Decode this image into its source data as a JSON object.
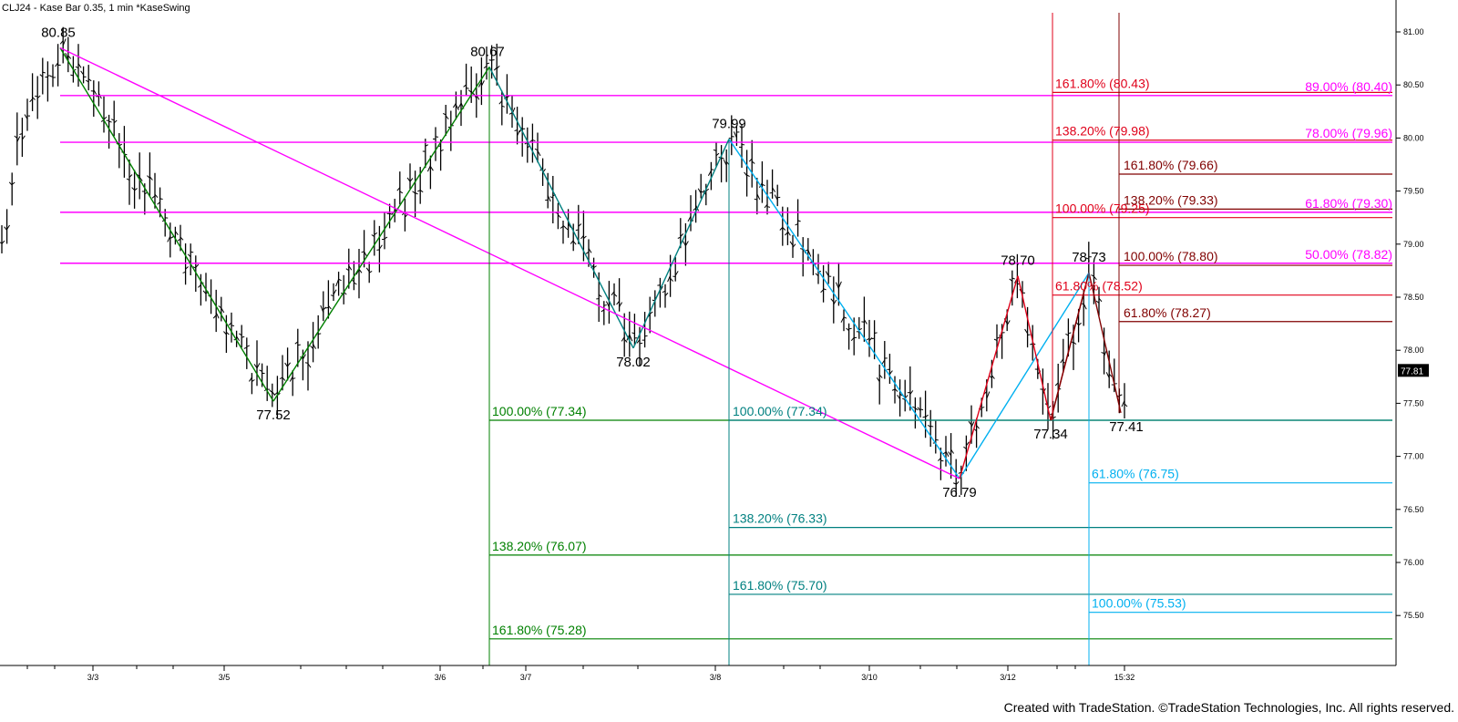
{
  "chart_data": {
    "type": "bar",
    "title": "CLJ24 - Kase Bar 0.35, 1 min  *KaseSwing",
    "credit": "Created with TradeStation. ©TradeStation Technologies, Inc. All rights reserved.",
    "last_price": "77.81",
    "y_ticks": [
      "81.00",
      "80.50",
      "80.00",
      "79.50",
      "79.00",
      "78.50",
      "78.00",
      "77.50",
      "77.00",
      "76.50",
      "76.00",
      "75.50"
    ],
    "ylim": [
      75.0,
      81.4
    ],
    "grid": false,
    "x_ticks": [
      "3/3",
      "3/5",
      "3/6",
      "3/7",
      "3/8",
      "3/10",
      "3/12",
      "15:32"
    ],
    "swing_points": [
      {
        "label": "80.85",
        "price": 80.85
      },
      {
        "label": "77.52",
        "price": 77.52
      },
      {
        "label": "80.67",
        "price": 80.67
      },
      {
        "label": "78.02",
        "price": 78.02
      },
      {
        "label": "79.99",
        "price": 79.99
      },
      {
        "label": "76.79",
        "price": 76.79
      },
      {
        "label": "78.70",
        "price": 78.7
      },
      {
        "label": "77.34",
        "price": 77.34
      },
      {
        "label": "78.73",
        "price": 78.73
      },
      {
        "label": "77.41",
        "price": 77.41
      }
    ],
    "fib_levels": [
      {
        "group": "magenta",
        "label": "89.00% (80.40)",
        "price": 80.4,
        "color": "#ff00ff"
      },
      {
        "group": "magenta",
        "label": "78.00% (79.96)",
        "price": 79.96,
        "color": "#ff00ff"
      },
      {
        "group": "magenta",
        "label": "61.80% (79.30)",
        "price": 79.3,
        "color": "#ff00ff"
      },
      {
        "group": "magenta",
        "label": "50.00% (78.82)",
        "price": 78.82,
        "color": "#ff00ff"
      },
      {
        "group": "green",
        "label": "100.00% (77.34)",
        "price": 77.34,
        "color": "#008000"
      },
      {
        "group": "green",
        "label": "138.20% (76.07)",
        "price": 76.07,
        "color": "#008000"
      },
      {
        "group": "green",
        "label": "161.80% (75.28)",
        "price": 75.28,
        "color": "#008000"
      },
      {
        "group": "teal",
        "label": "100.00% (77.34)",
        "price": 77.34,
        "color": "#008080"
      },
      {
        "group": "teal",
        "label": "138.20% (76.33)",
        "price": 76.33,
        "color": "#008080"
      },
      {
        "group": "teal",
        "label": "161.80% (75.70)",
        "price": 75.7,
        "color": "#008080"
      },
      {
        "group": "red",
        "label": "161.80% (80.43)",
        "price": 80.43,
        "color": "#e0001a"
      },
      {
        "group": "red",
        "label": "138.20% (79.98)",
        "price": 79.98,
        "color": "#e0001a"
      },
      {
        "group": "red",
        "label": "100.00% (79.25)",
        "price": 79.25,
        "color": "#e0001a"
      },
      {
        "group": "red",
        "label": "61.80% (78.52)",
        "price": 78.52,
        "color": "#e0001a"
      },
      {
        "group": "maroon",
        "label": "161.80% (79.66)",
        "price": 79.66,
        "color": "#800000"
      },
      {
        "group": "maroon",
        "label": "138.20% (79.33)",
        "price": 79.33,
        "color": "#800000"
      },
      {
        "group": "maroon",
        "label": "100.00% (78.80)",
        "price": 78.8,
        "color": "#800000"
      },
      {
        "group": "maroon",
        "label": "61.80% (78.27)",
        "price": 78.27,
        "color": "#800000"
      },
      {
        "group": "cyan",
        "label": "61.80% (76.75)",
        "price": 76.75,
        "color": "#00b0f0"
      },
      {
        "group": "cyan",
        "label": "100.00% (75.53)",
        "price": 75.53,
        "color": "#00b0f0"
      }
    ],
    "colors": {
      "magenta": "#ff00ff",
      "green": "#008000",
      "teal": "#008080",
      "red": "#e0001a",
      "maroon": "#800000",
      "cyan": "#00b0f0",
      "bars": "#000000",
      "axis": "#000000"
    }
  }
}
